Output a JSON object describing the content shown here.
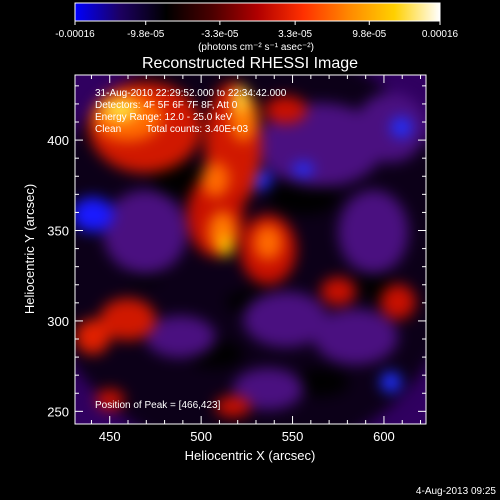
{
  "colorbar": {
    "ticks": [
      "-0.00016",
      "-9.8e-05",
      "-3.3e-05",
      "3.3e-05",
      "9.8e-05",
      "0.00016"
    ],
    "tick_values": [
      -0.00016,
      -9.8e-05,
      -3.3e-05,
      3.3e-05,
      9.8e-05,
      0.00016
    ],
    "unit": "(photons cm⁻² s⁻¹ asec⁻²)",
    "stops": [
      "#0000ff",
      "#1c0060",
      "#000000",
      "#4a0000",
      "#b00000",
      "#ff3000",
      "#ff8800",
      "#ffd000",
      "#ffffff"
    ]
  },
  "chart_data": {
    "type": "heatmap",
    "title": "Reconstructed RHESSI Image",
    "xlabel": "Heliocentric X (arcsec)",
    "ylabel": "Heliocentric Y (arcsec)",
    "xlim": [
      431,
      623
    ],
    "ylim": [
      243,
      436
    ],
    "xticks": [
      450,
      500,
      550,
      600
    ],
    "yticks": [
      250,
      300,
      350,
      400
    ],
    "x_tick_labels": [
      "450",
      "500",
      "550",
      "600"
    ],
    "y_tick_labels": [
      "250",
      "300",
      "350",
      "400"
    ],
    "peak": [
      466,
      423
    ],
    "annotations": {
      "time_range": "31-Aug-2010 22:29:52.000 to 22:34:42.000",
      "detectors": "Detectors: 4F 5F 6F 7F 8F, Att 0",
      "energy": "Energy Range: 12.0 - 25.0 keV",
      "clean": "Clean",
      "counts": "Total counts: 3.40E+03",
      "peak_text": "Position of Peak = [466,423]"
    }
  },
  "footer": {
    "date": "4-Aug-2013 09:25"
  }
}
